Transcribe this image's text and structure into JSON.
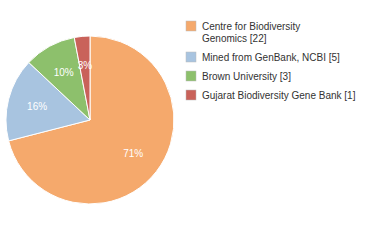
{
  "chart_data": {
    "type": "pie",
    "categories": [
      "Centre for Biodiversity\nGenomics [22]",
      "Mined from GenBank, NCBI [5]",
      "Brown University [3]",
      "Gujarat Biodiversity Gene Bank [1]"
    ],
    "values": [
      71,
      16,
      10,
      3
    ],
    "value_labels": [
      "71%",
      "16%",
      "10%",
      "3%"
    ],
    "colors": [
      "#F5A96C",
      "#A8C4E0",
      "#8DC06C",
      "#C9625A"
    ],
    "data_labels": true,
    "legend": "right"
  }
}
